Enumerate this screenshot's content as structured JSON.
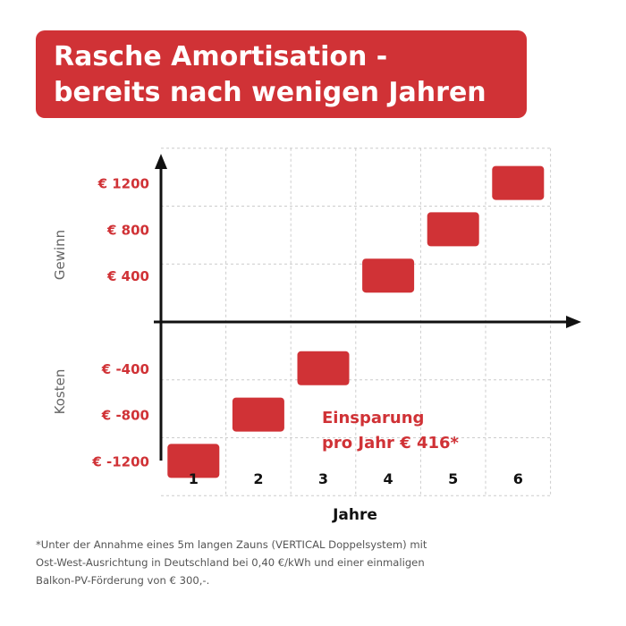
{
  "title": {
    "line1": "Rasche Amortisation -",
    "line2": "bereits nach wenigen Jahren"
  },
  "colors": {
    "accent": "#d03236",
    "axis": "#111111",
    "grid": "#cccccc",
    "category_label": "#666666",
    "footnote": "#555555"
  },
  "chart_data": {
    "type": "bar",
    "xlabel": "Jahre",
    "x": [
      1,
      2,
      3,
      4,
      5,
      6
    ],
    "xtick_labels": [
      "1",
      "2",
      "3",
      "4",
      "5",
      "6"
    ],
    "values": [
      -1200,
      -800,
      -400,
      400,
      800,
      1200
    ],
    "ylim": [
      -1500,
      1500
    ],
    "ytick_values": [
      1200,
      800,
      400,
      -400,
      -800,
      -1200
    ],
    "ytick_labels": [
      "€ 1200",
      "€ 800",
      "€ 400",
      "€ -400",
      "€ -800",
      "€ -1200"
    ],
    "y_region_labels": {
      "positive": "Gewinn",
      "negative": "Kosten"
    },
    "annotation": {
      "line1": "Einsparung",
      "line2": "pro Jahr € 416*"
    },
    "grid": true
  },
  "footnote": {
    "line1": "*Unter der Annahme eines 5m langen Zauns (VERTICAL Doppelsystem) mit",
    "line2": "Ost-West-Ausrichtung in Deutschland bei 0,40 €/kWh und einer einmaligen",
    "line3": "Balkon-PV-Förderung von € 300,-."
  }
}
